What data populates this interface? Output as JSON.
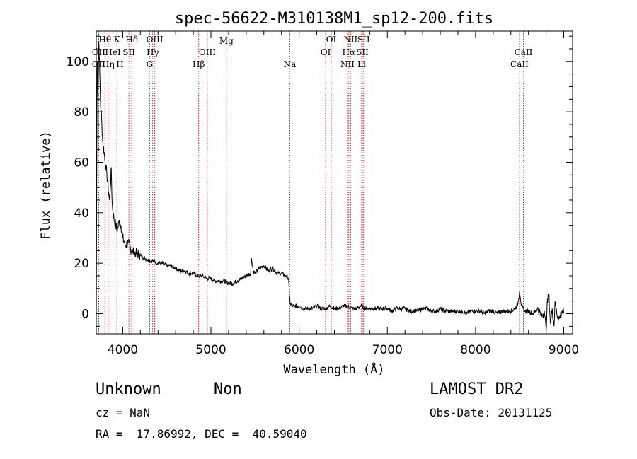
{
  "chart_data": {
    "type": "line",
    "title": "spec-56622-M310138M1_sp12-200.fits",
    "xlabel": "Wavelength (Å)",
    "ylabel": "Flux (relative)",
    "xlim": [
      3700,
      9100
    ],
    "ylim": [
      -8,
      112
    ],
    "xticks": [
      4000,
      5000,
      6000,
      7000,
      8000,
      9000
    ],
    "yticks": [
      0,
      20,
      40,
      60,
      80,
      100
    ],
    "series": [
      {
        "x": [
          3700,
          3710,
          3720,
          3730,
          3740,
          3750,
          3760,
          3770,
          3780,
          3790,
          3800,
          3810,
          3820,
          3830,
          3840,
          3850,
          3860,
          3870,
          3880,
          3890,
          3900,
          3920,
          3940,
          3960,
          3980,
          4000,
          4030,
          4060,
          4100,
          4150,
          4200,
          4250,
          4300,
          4350,
          4400,
          4450,
          4500,
          4550,
          4600,
          4650,
          4700,
          4750,
          4800,
          4850,
          4900,
          4950,
          5000,
          5050,
          5100,
          5150,
          5200,
          5250,
          5300,
          5350,
          5400,
          5450,
          5460,
          5480,
          5500,
          5550,
          5600,
          5650,
          5700,
          5750,
          5800,
          5850,
          5880,
          5890,
          5900,
          5920,
          5950,
          6000,
          6050,
          6100,
          6150,
          6200,
          6250,
          6300,
          6350,
          6400,
          6450,
          6500,
          6550,
          6600,
          6650,
          6700,
          6750,
          6800,
          6850,
          6900,
          6950,
          7000,
          7050,
          7100,
          7150,
          7200,
          7250,
          7300,
          7350,
          7400,
          7450,
          7500,
          7550,
          7600,
          7650,
          7700,
          7750,
          7800,
          7850,
          7900,
          7950,
          8000,
          8050,
          8100,
          8150,
          8200,
          8250,
          8300,
          8350,
          8400,
          8450,
          8480,
          8500,
          8520,
          8540,
          8560,
          8600,
          8650,
          8700,
          8750,
          8780,
          8800,
          8810,
          8830,
          8850,
          8870,
          8890,
          8900,
          8920,
          8950,
          8980,
          9000
        ],
        "y": [
          -5,
          100,
          85,
          108,
          95,
          82,
          78,
          70,
          66,
          64,
          60,
          58,
          55,
          52,
          48,
          45,
          50,
          58,
          44,
          40,
          38,
          35,
          33,
          37,
          35,
          30,
          27,
          28,
          25,
          24,
          23,
          22,
          21,
          21,
          20,
          20,
          19,
          19,
          18,
          17,
          17,
          16,
          16,
          15,
          15,
          14,
          14,
          13,
          13,
          13,
          12,
          12,
          13,
          14,
          15,
          16,
          22,
          17,
          16,
          18,
          19,
          17,
          18,
          16,
          16,
          15,
          14,
          7,
          4,
          3,
          3,
          3,
          2,
          2,
          2,
          3,
          2,
          2,
          3,
          2,
          2,
          3,
          3,
          2,
          2,
          3,
          2,
          2,
          2,
          2,
          2,
          2,
          1,
          2,
          2,
          2,
          1,
          1,
          1,
          2,
          2,
          1,
          1,
          2,
          1,
          1,
          1,
          1,
          1,
          0,
          1,
          1,
          1,
          0,
          1,
          1,
          0,
          1,
          1,
          1,
          2,
          4,
          9,
          3,
          2,
          1,
          1,
          0,
          2,
          -1,
          1,
          -7,
          3,
          8,
          -4,
          2,
          -5,
          5,
          0,
          -2,
          1,
          0
        ]
      }
    ],
    "lines": [
      {
        "name": "Hθ",
        "x": 3798,
        "row": 1
      },
      {
        "name": "OII",
        "x": 3727,
        "row": 2
      },
      {
        "name": "OII",
        "x": 3727,
        "row": 3
      },
      {
        "name": "Hη",
        "x": 3835,
        "row": 3
      },
      {
        "name": "K",
        "x": 3934,
        "row": 1
      },
      {
        "name": "HeI",
        "x": 3889,
        "row": 2
      },
      {
        "name": "H",
        "x": 3969,
        "row": 3
      },
      {
        "name": "SII",
        "x": 4070,
        "row": 2
      },
      {
        "name": "Hδ",
        "x": 4102,
        "row": 1
      },
      {
        "name": "OIII",
        "x": 4363,
        "row": 1
      },
      {
        "name": "Hγ",
        "x": 4340,
        "row": 2
      },
      {
        "name": "G",
        "x": 4305,
        "row": 3
      },
      {
        "name": "OIII",
        "x": 4959,
        "row": 2
      },
      {
        "name": "Hβ",
        "x": 4861,
        "row": 3
      },
      {
        "name": "Mg",
        "x": 5175,
        "row": 0
      },
      {
        "name": "Na",
        "x": 5894,
        "row": 3
      },
      {
        "name": "OI",
        "x": 6364,
        "row": 1
      },
      {
        "name": "OI",
        "x": 6300,
        "row": 2
      },
      {
        "name": "NII",
        "x": 6583,
        "row": 1
      },
      {
        "name": "Hα",
        "x": 6563,
        "row": 2
      },
      {
        "name": "NII",
        "x": 6548,
        "row": 3
      },
      {
        "name": "SII",
        "x": 6731,
        "row": 1
      },
      {
        "name": "SII",
        "x": 6717,
        "row": 2
      },
      {
        "name": "Li",
        "x": 6708,
        "row": 3
      },
      {
        "name": "CaII",
        "x": 8542,
        "row": 2
      },
      {
        "name": "CaII",
        "x": 8498,
        "row": 3
      }
    ]
  },
  "info": {
    "class": "Unknown",
    "subclass": "Non",
    "survey": "LAMOST DR2",
    "cz": "cz = NaN",
    "obs_date": "Obs-Date: 20131125",
    "coords": "RA =  17.86992, DEC =  40.59040"
  }
}
